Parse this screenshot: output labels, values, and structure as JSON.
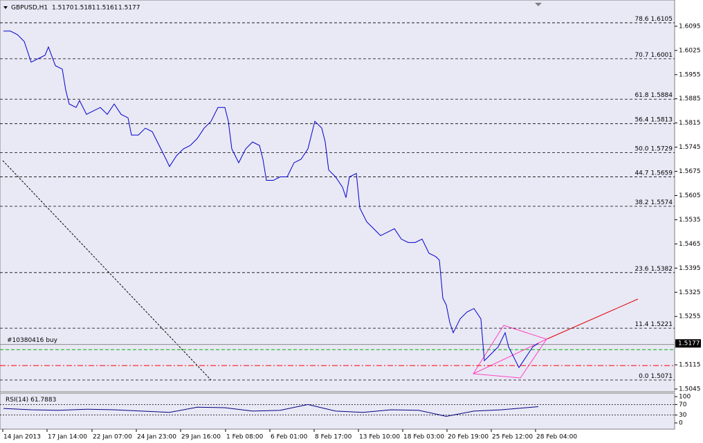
{
  "chart_data": [
    {
      "type": "line",
      "symbol": "GBPUSD,H1",
      "ohlc": [
        {
          "value": 1.517,
          "label": "1.5170"
        },
        1.5181,
        1.5161,
        1.5177
      ],
      "ylim": [
        1.5037,
        1.6171
      ],
      "xlim": [
        0,
        975
      ],
      "yticks": [
        1.6095,
        1.6025,
        1.5955,
        1.5885,
        1.5815,
        1.5745,
        1.5675,
        1.5605,
        1.5535,
        1.5465,
        1.5395,
        1.5325,
        1.5255,
        1.5115,
        1.5045
      ],
      "xticks": [
        {
          "value": 4,
          "label": "14 Jan 2013"
        },
        {
          "value": 68,
          "label": "17 Jan 14:00"
        },
        {
          "value": 133,
          "label": "22 Jan 07:00"
        },
        {
          "value": 197,
          "label": "24 Jan 23:00"
        },
        {
          "value": 261,
          "label": "29 Jan 16:00"
        },
        {
          "value": 326,
          "label": "1 Feb 08:00"
        },
        {
          "value": 390,
          "label": "6 Feb 01:00"
        },
        {
          "value": 454,
          "label": "8 Feb 17:00"
        },
        {
          "value": 518,
          "label": "13 Feb 10:00"
        },
        {
          "value": 582,
          "label": "18 Feb 03:00"
        },
        {
          "value": 646,
          "label": "20 Feb 19:00"
        },
        {
          "value": 710,
          "label": "25 Feb 12:00"
        },
        {
          "value": 774,
          "label": "28 Feb 04:00"
        }
      ],
      "fib": [
        {
          "level": "78.6",
          "price": 1.6105
        },
        {
          "level": "70.7",
          "price": 1.6001
        },
        {
          "level": "61.8",
          "price": 1.5884
        },
        {
          "level": "56.4",
          "price": 1.5813
        },
        {
          "level": "50.0",
          "price": 1.5729
        },
        {
          "level": "44.7",
          "price": 1.5659
        },
        {
          "level": "38.2",
          "price": 1.5574
        },
        {
          "level": "23.6",
          "price": 1.5382
        },
        {
          "level": "11.4",
          "price": 1.5221
        },
        {
          "level": "0.0",
          "price": 1.5071
        }
      ],
      "order": {
        "label": "#10380416 buy",
        "price": 1.5174
      },
      "levels": [
        {
          "color": "#00b000",
          "price": 1.5159
        },
        {
          "color": "#ff0000",
          "price": 1.5113
        }
      ],
      "series": [
        {
          "color": "#0000cc",
          "x": [
            5,
            15,
            25,
            35,
            45,
            55,
            65,
            70,
            80,
            90,
            95,
            100,
            110,
            115,
            125,
            135,
            145,
            155,
            165,
            175,
            185,
            190,
            200,
            210,
            220,
            230,
            240,
            245,
            255,
            265,
            275,
            285,
            295,
            305,
            315,
            325,
            330,
            335,
            345,
            355,
            365,
            375,
            380,
            385,
            395,
            405,
            415,
            425,
            435,
            445,
            455,
            465,
            470,
            475,
            485,
            495,
            500,
            505,
            515,
            520,
            530,
            540,
            550,
            560,
            570,
            580,
            590,
            600,
            610,
            620,
            630,
            635,
            640,
            645,
            650,
            655,
            660,
            665,
            675,
            685,
            695,
            700,
            710,
            720,
            730,
            735,
            745,
            750,
            760,
            770,
            778
          ],
          "values": [
            1.6081,
            1.6081,
            1.6071,
            1.6051,
            1.5991,
            1.6001,
            1.6011,
            1.6035,
            1.5981,
            1.5971,
            1.591,
            1.587,
            1.586,
            1.588,
            1.584,
            1.585,
            1.586,
            1.584,
            1.587,
            1.584,
            1.583,
            1.578,
            1.578,
            1.58,
            1.579,
            1.575,
            1.571,
            1.5689,
            1.572,
            1.574,
            1.575,
            1.577,
            1.58,
            1.582,
            1.586,
            1.586,
            1.582,
            1.574,
            1.57,
            1.574,
            1.576,
            1.575,
            1.571,
            1.5649,
            1.5649,
            1.5659,
            1.5659,
            1.57,
            1.571,
            1.574,
            1.582,
            1.58,
            1.576,
            1.5679,
            1.5659,
            1.5629,
            1.5599,
            1.5659,
            1.5669,
            1.5569,
            1.5529,
            1.5509,
            1.5489,
            1.5499,
            1.5509,
            1.5479,
            1.5469,
            1.5469,
            1.5479,
            1.5438,
            1.5428,
            1.5418,
            1.5308,
            1.5288,
            1.5238,
            1.5208,
            1.5228,
            1.5248,
            1.5268,
            1.5278,
            1.5248,
            1.5127,
            1.5147,
            1.5167,
            1.5208,
            1.5167,
            1.5127,
            1.5107,
            1.5137,
            1.5167,
            1.5177
          ]
        }
      ]
    },
    {
      "type": "line",
      "title": "RSI(14)",
      "last": 61.7883,
      "ylim": [
        0,
        100
      ],
      "xlim": [
        0,
        975
      ],
      "yticks": [
        100,
        70,
        30,
        0
      ],
      "series": [
        {
          "color": "#000080",
          "x": [
            5,
            45,
            85,
            125,
            165,
            205,
            245,
            285,
            325,
            365,
            405,
            445,
            485,
            525,
            565,
            605,
            645,
            685,
            725,
            778
          ],
          "values": [
            55,
            50,
            48,
            52,
            50,
            45,
            40,
            60,
            58,
            45,
            48,
            70,
            45,
            40,
            50,
            48,
            25,
            45,
            50,
            61.7883
          ]
        }
      ]
    }
  ]
}
